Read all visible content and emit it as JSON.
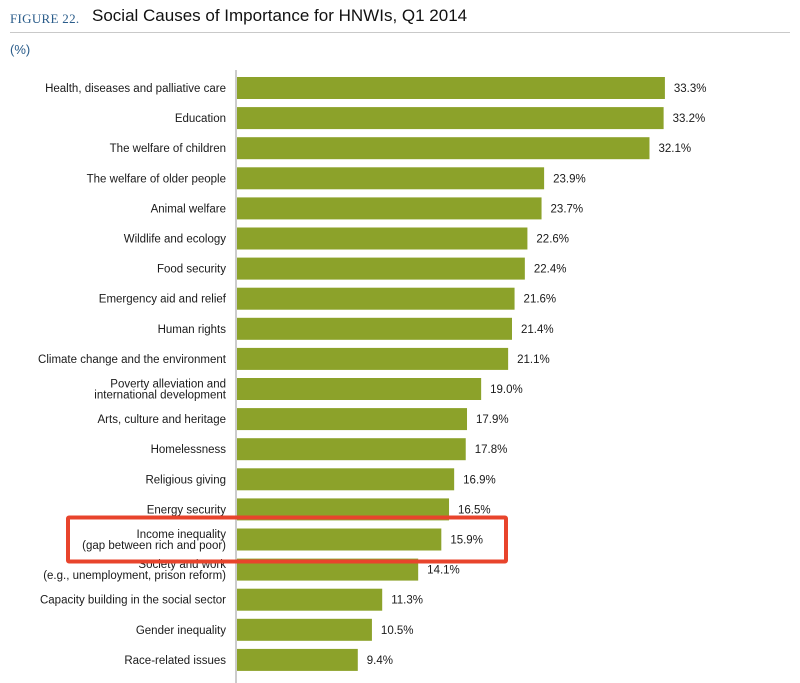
{
  "figure": {
    "label": "FIGURE 22.",
    "title": "Social Causes of Importance for HNWIs, Q1 2014",
    "unit": "(%)"
  },
  "colors": {
    "bar": "#8ca22a",
    "highlight": "#e8442c",
    "axis": "#9a9a9a",
    "figure_label": "#2a5c8a"
  },
  "chart_data": {
    "type": "bar",
    "orientation": "horizontal",
    "title": "Social Causes of Importance for HNWIs, Q1 2014",
    "ylabel": "(%)",
    "xlim": [
      0,
      35
    ],
    "grid": false,
    "categories": [
      [
        "Health, diseases and palliative care"
      ],
      [
        "Education"
      ],
      [
        "The welfare of children"
      ],
      [
        "The welfare of older people"
      ],
      [
        "Animal welfare"
      ],
      [
        "Wildlife and ecology"
      ],
      [
        "Food security"
      ],
      [
        "Emergency aid and relief"
      ],
      [
        "Human rights"
      ],
      [
        "Climate change and the environment"
      ],
      [
        "Poverty alleviation and",
        "international development"
      ],
      [
        "Arts, culture and heritage"
      ],
      [
        "Homelessness"
      ],
      [
        "Religious giving"
      ],
      [
        "Energy security"
      ],
      [
        "Income inequality",
        "(gap between rich and poor)"
      ],
      [
        "Society and work",
        "(e.g., unemployment, prison reform)"
      ],
      [
        "Capacity building in the social sector"
      ],
      [
        "Gender inequality"
      ],
      [
        "Race-related issues"
      ]
    ],
    "values": [
      33.3,
      33.2,
      32.1,
      23.9,
      23.7,
      22.6,
      22.4,
      21.6,
      21.4,
      21.1,
      19.0,
      17.9,
      17.8,
      16.9,
      16.5,
      15.9,
      14.1,
      11.3,
      10.5,
      9.4
    ],
    "value_labels": [
      "33.3%",
      "33.2%",
      "32.1%",
      "23.9%",
      "23.7%",
      "22.6%",
      "22.4%",
      "21.6%",
      "21.4%",
      "21.1%",
      "19.0%",
      "17.9%",
      "17.8%",
      "16.9%",
      "16.5%",
      "15.9%",
      "14.1%",
      "11.3%",
      "10.5%",
      "9.4%"
    ],
    "highlighted_category_index": 15
  }
}
